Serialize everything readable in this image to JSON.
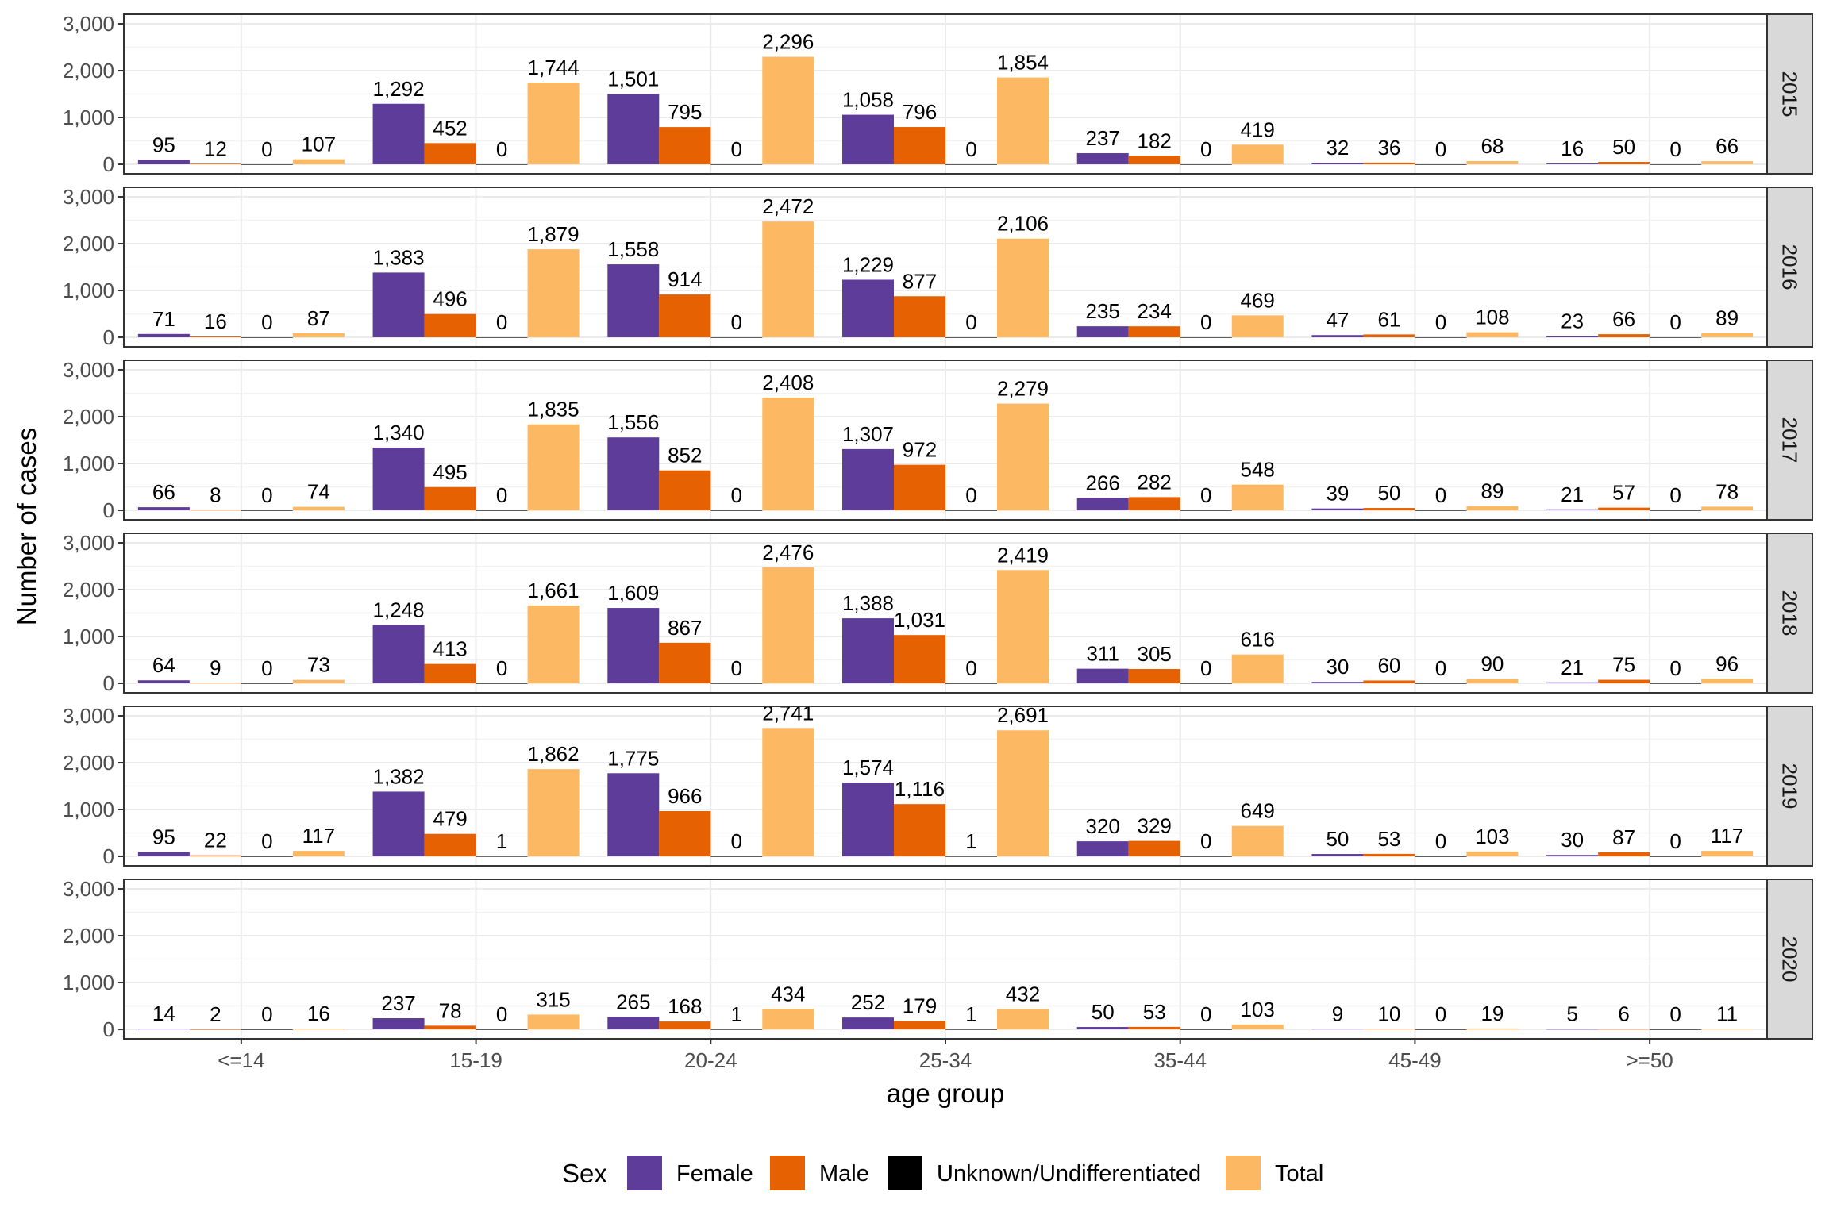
{
  "chart_data": {
    "type": "bar",
    "xlabel": "age group",
    "ylabel": "Number of cases",
    "ylim": [
      0,
      3000
    ],
    "yticks": [
      0,
      1000,
      2000,
      3000
    ],
    "ytick_labels": [
      "0",
      "1,000",
      "2,000",
      "3,000"
    ],
    "grid": true,
    "legend_position": "bottom",
    "legend_title": "Sex",
    "categories": [
      "<=14",
      "15-19",
      "20-24",
      "25-34",
      "35-44",
      "45-49",
      ">=50"
    ],
    "series_meta": [
      {
        "name": "Female",
        "color": "#5e3c99"
      },
      {
        "name": "Male",
        "color": "#e66101"
      },
      {
        "name": "Unknown/Undifferentiated",
        "color": "#000000"
      },
      {
        "name": "Total",
        "color": "#fdb863"
      }
    ],
    "panels": [
      {
        "label": "2015",
        "series": [
          {
            "name": "Female",
            "values": [
              95,
              1292,
              1501,
              1058,
              237,
              32,
              16
            ]
          },
          {
            "name": "Male",
            "values": [
              12,
              452,
              795,
              796,
              182,
              36,
              50
            ]
          },
          {
            "name": "Unknown/Undifferentiated",
            "values": [
              0,
              0,
              0,
              0,
              0,
              0,
              0
            ]
          },
          {
            "name": "Total",
            "values": [
              107,
              1744,
              2296,
              1854,
              419,
              68,
              66
            ]
          }
        ]
      },
      {
        "label": "2016",
        "series": [
          {
            "name": "Female",
            "values": [
              71,
              1383,
              1558,
              1229,
              235,
              47,
              23
            ]
          },
          {
            "name": "Male",
            "values": [
              16,
              496,
              914,
              877,
              234,
              61,
              66
            ]
          },
          {
            "name": "Unknown/Undifferentiated",
            "values": [
              0,
              0,
              0,
              0,
              0,
              0,
              0
            ]
          },
          {
            "name": "Total",
            "values": [
              87,
              1879,
              2472,
              2106,
              469,
              108,
              89
            ]
          }
        ]
      },
      {
        "label": "2017",
        "series": [
          {
            "name": "Female",
            "values": [
              66,
              1340,
              1556,
              1307,
              266,
              39,
              21
            ]
          },
          {
            "name": "Male",
            "values": [
              8,
              495,
              852,
              972,
              282,
              50,
              57
            ]
          },
          {
            "name": "Unknown/Undifferentiated",
            "values": [
              0,
              0,
              0,
              0,
              0,
              0,
              0
            ]
          },
          {
            "name": "Total",
            "values": [
              74,
              1835,
              2408,
              2279,
              548,
              89,
              78
            ]
          }
        ]
      },
      {
        "label": "2018",
        "series": [
          {
            "name": "Female",
            "values": [
              64,
              1248,
              1609,
              1388,
              311,
              30,
              21
            ]
          },
          {
            "name": "Male",
            "values": [
              9,
              413,
              867,
              1031,
              305,
              60,
              75
            ]
          },
          {
            "name": "Unknown/Undifferentiated",
            "values": [
              0,
              0,
              0,
              0,
              0,
              0,
              0
            ]
          },
          {
            "name": "Total",
            "values": [
              73,
              1661,
              2476,
              2419,
              616,
              90,
              96
            ]
          }
        ]
      },
      {
        "label": "2019",
        "series": [
          {
            "name": "Female",
            "values": [
              95,
              1382,
              1775,
              1574,
              320,
              50,
              30
            ]
          },
          {
            "name": "Male",
            "values": [
              22,
              479,
              966,
              1116,
              329,
              53,
              87
            ]
          },
          {
            "name": "Unknown/Undifferentiated",
            "values": [
              0,
              1,
              0,
              1,
              0,
              0,
              0
            ]
          },
          {
            "name": "Total",
            "values": [
              117,
              1862,
              2741,
              2691,
              649,
              103,
              117
            ]
          }
        ]
      },
      {
        "label": "2020",
        "series": [
          {
            "name": "Female",
            "values": [
              14,
              237,
              265,
              252,
              50,
              9,
              5
            ]
          },
          {
            "name": "Male",
            "values": [
              2,
              78,
              168,
              179,
              53,
              10,
              6
            ]
          },
          {
            "name": "Unknown/Undifferentiated",
            "values": [
              0,
              0,
              1,
              1,
              0,
              0,
              0
            ]
          },
          {
            "name": "Total",
            "values": [
              16,
              315,
              434,
              432,
              103,
              19,
              11
            ]
          }
        ]
      }
    ]
  }
}
